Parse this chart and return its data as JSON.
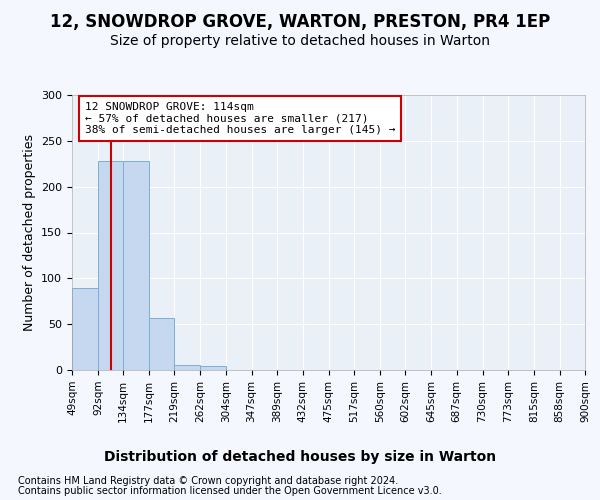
{
  "title": "12, SNOWDROP GROVE, WARTON, PRESTON, PR4 1EP",
  "subtitle": "Size of property relative to detached houses in Warton",
  "xlabel": "Distribution of detached houses by size in Warton",
  "ylabel": "Number of detached properties",
  "bin_edges": [
    49,
    92,
    134,
    177,
    219,
    262,
    304,
    347,
    389,
    432,
    475,
    517,
    560,
    602,
    645,
    687,
    730,
    773,
    815,
    858,
    900
  ],
  "bar_heights": [
    90,
    228,
    228,
    57,
    6,
    4,
    0,
    0,
    0,
    0,
    0,
    0,
    0,
    0,
    0,
    0,
    0,
    0,
    0,
    0
  ],
  "bar_color": "#c5d8f0",
  "bar_edge_color": "#7bafd4",
  "vline_x": 114,
  "vline_color": "#cc0000",
  "annotation_text": "12 SNOWDROP GROVE: 114sqm\n← 57% of detached houses are smaller (217)\n38% of semi-detached houses are larger (145) →",
  "annotation_box_color": "#ffffff",
  "annotation_box_edge": "#cc0000",
  "ylim": [
    0,
    300
  ],
  "yticks": [
    0,
    50,
    100,
    150,
    200,
    250,
    300
  ],
  "background_color": "#f5f7ff",
  "plot_background": "#eaf0f8",
  "grid_color": "#ffffff",
  "footer_line1": "Contains HM Land Registry data © Crown copyright and database right 2024.",
  "footer_line2": "Contains public sector information licensed under the Open Government Licence v3.0.",
  "title_fontsize": 12,
  "subtitle_fontsize": 10,
  "annotation_fontsize": 8,
  "xlabel_fontsize": 10,
  "ylabel_fontsize": 9,
  "xtick_fontsize": 7.5,
  "ytick_fontsize": 8,
  "footer_fontsize": 7
}
